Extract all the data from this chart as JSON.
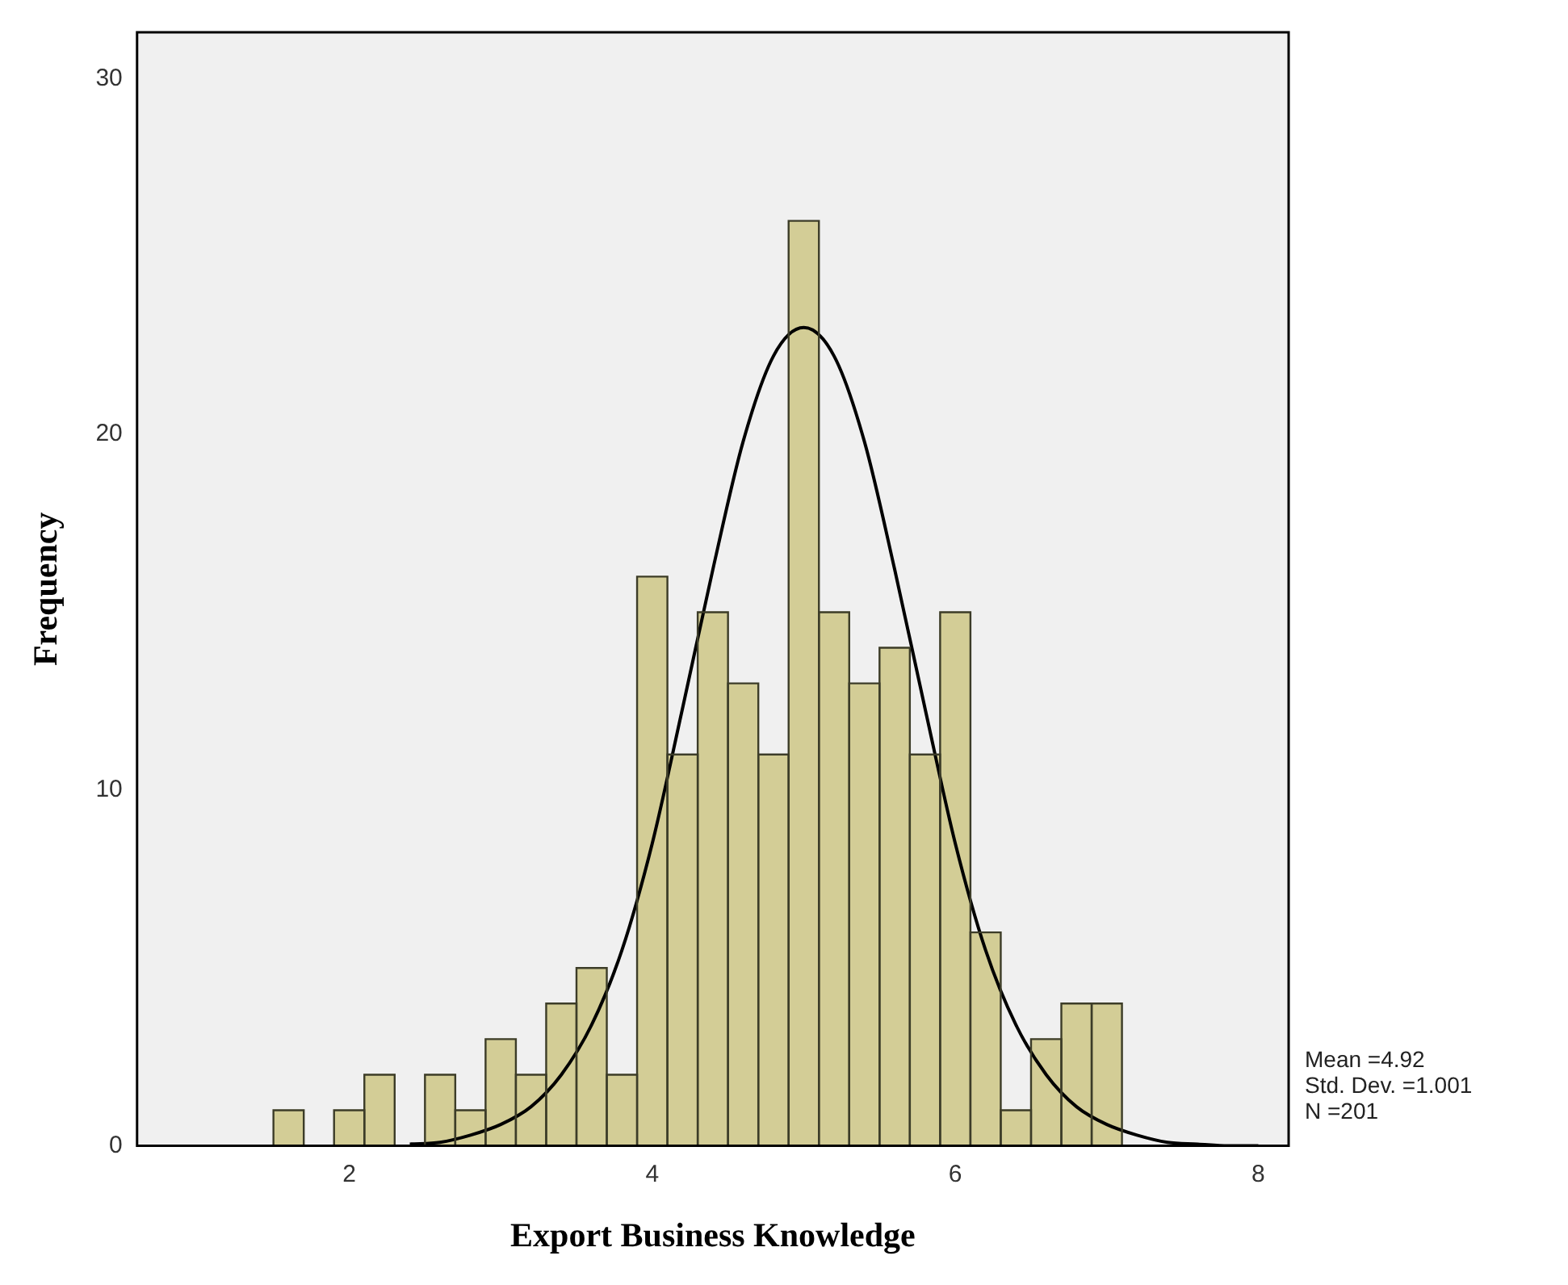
{
  "chart_data": {
    "type": "histogram",
    "xlabel": "Export Business Knowledge",
    "ylabel": "Frequency",
    "bins": [
      1.5,
      1.7,
      1.9,
      2.1,
      2.3,
      2.5,
      2.7,
      2.9,
      3.1,
      3.3,
      3.5,
      3.7,
      3.9,
      4.1,
      4.3,
      4.5,
      4.7,
      4.9,
      5.1,
      5.3,
      5.5,
      5.7,
      5.9,
      6.1,
      6.3,
      6.5,
      6.7,
      6.9,
      7.1
    ],
    "series": [
      {
        "color": "#d3cd96",
        "values": [
          1,
          0,
          1,
          2,
          0,
          2,
          1,
          3,
          2,
          4,
          5,
          2,
          16,
          11,
          15,
          13,
          11,
          26,
          15,
          13,
          14,
          11,
          15,
          6,
          1,
          3,
          4,
          4
        ]
      },
      {
        "type": "line",
        "color": "#000000",
        "x": [
          2.4,
          2.6,
          2.8,
          3.0,
          3.2,
          3.4,
          3.6,
          3.8,
          4.0,
          4.2,
          4.4,
          4.6,
          4.8,
          5.0,
          5.2,
          5.4,
          5.6,
          5.8,
          6.0,
          6.2,
          6.4,
          6.6,
          6.8,
          7.0,
          7.2,
          7.4,
          7.6,
          7.8,
          8.0
        ],
        "values": [
          0.05,
          0.1,
          0.3,
          0.6,
          1.1,
          2.0,
          3.4,
          5.5,
          8.5,
          12.3,
          16.2,
          19.8,
          22.2,
          23,
          22.2,
          19.8,
          16.2,
          12.3,
          8.5,
          5.5,
          3.4,
          2.0,
          1.1,
          0.6,
          0.3,
          0.1,
          0.05,
          0,
          0
        ]
      }
    ],
    "xlim": [
      0.6,
      8.2
    ],
    "xticks": [
      2,
      4,
      6,
      8
    ],
    "ylim": [
      0,
      31.3
    ],
    "yticks": [
      0,
      10,
      20,
      30
    ],
    "annotations": [
      "Mean =4.92",
      "Std. Dev. =1.001",
      "N =201"
    ]
  }
}
